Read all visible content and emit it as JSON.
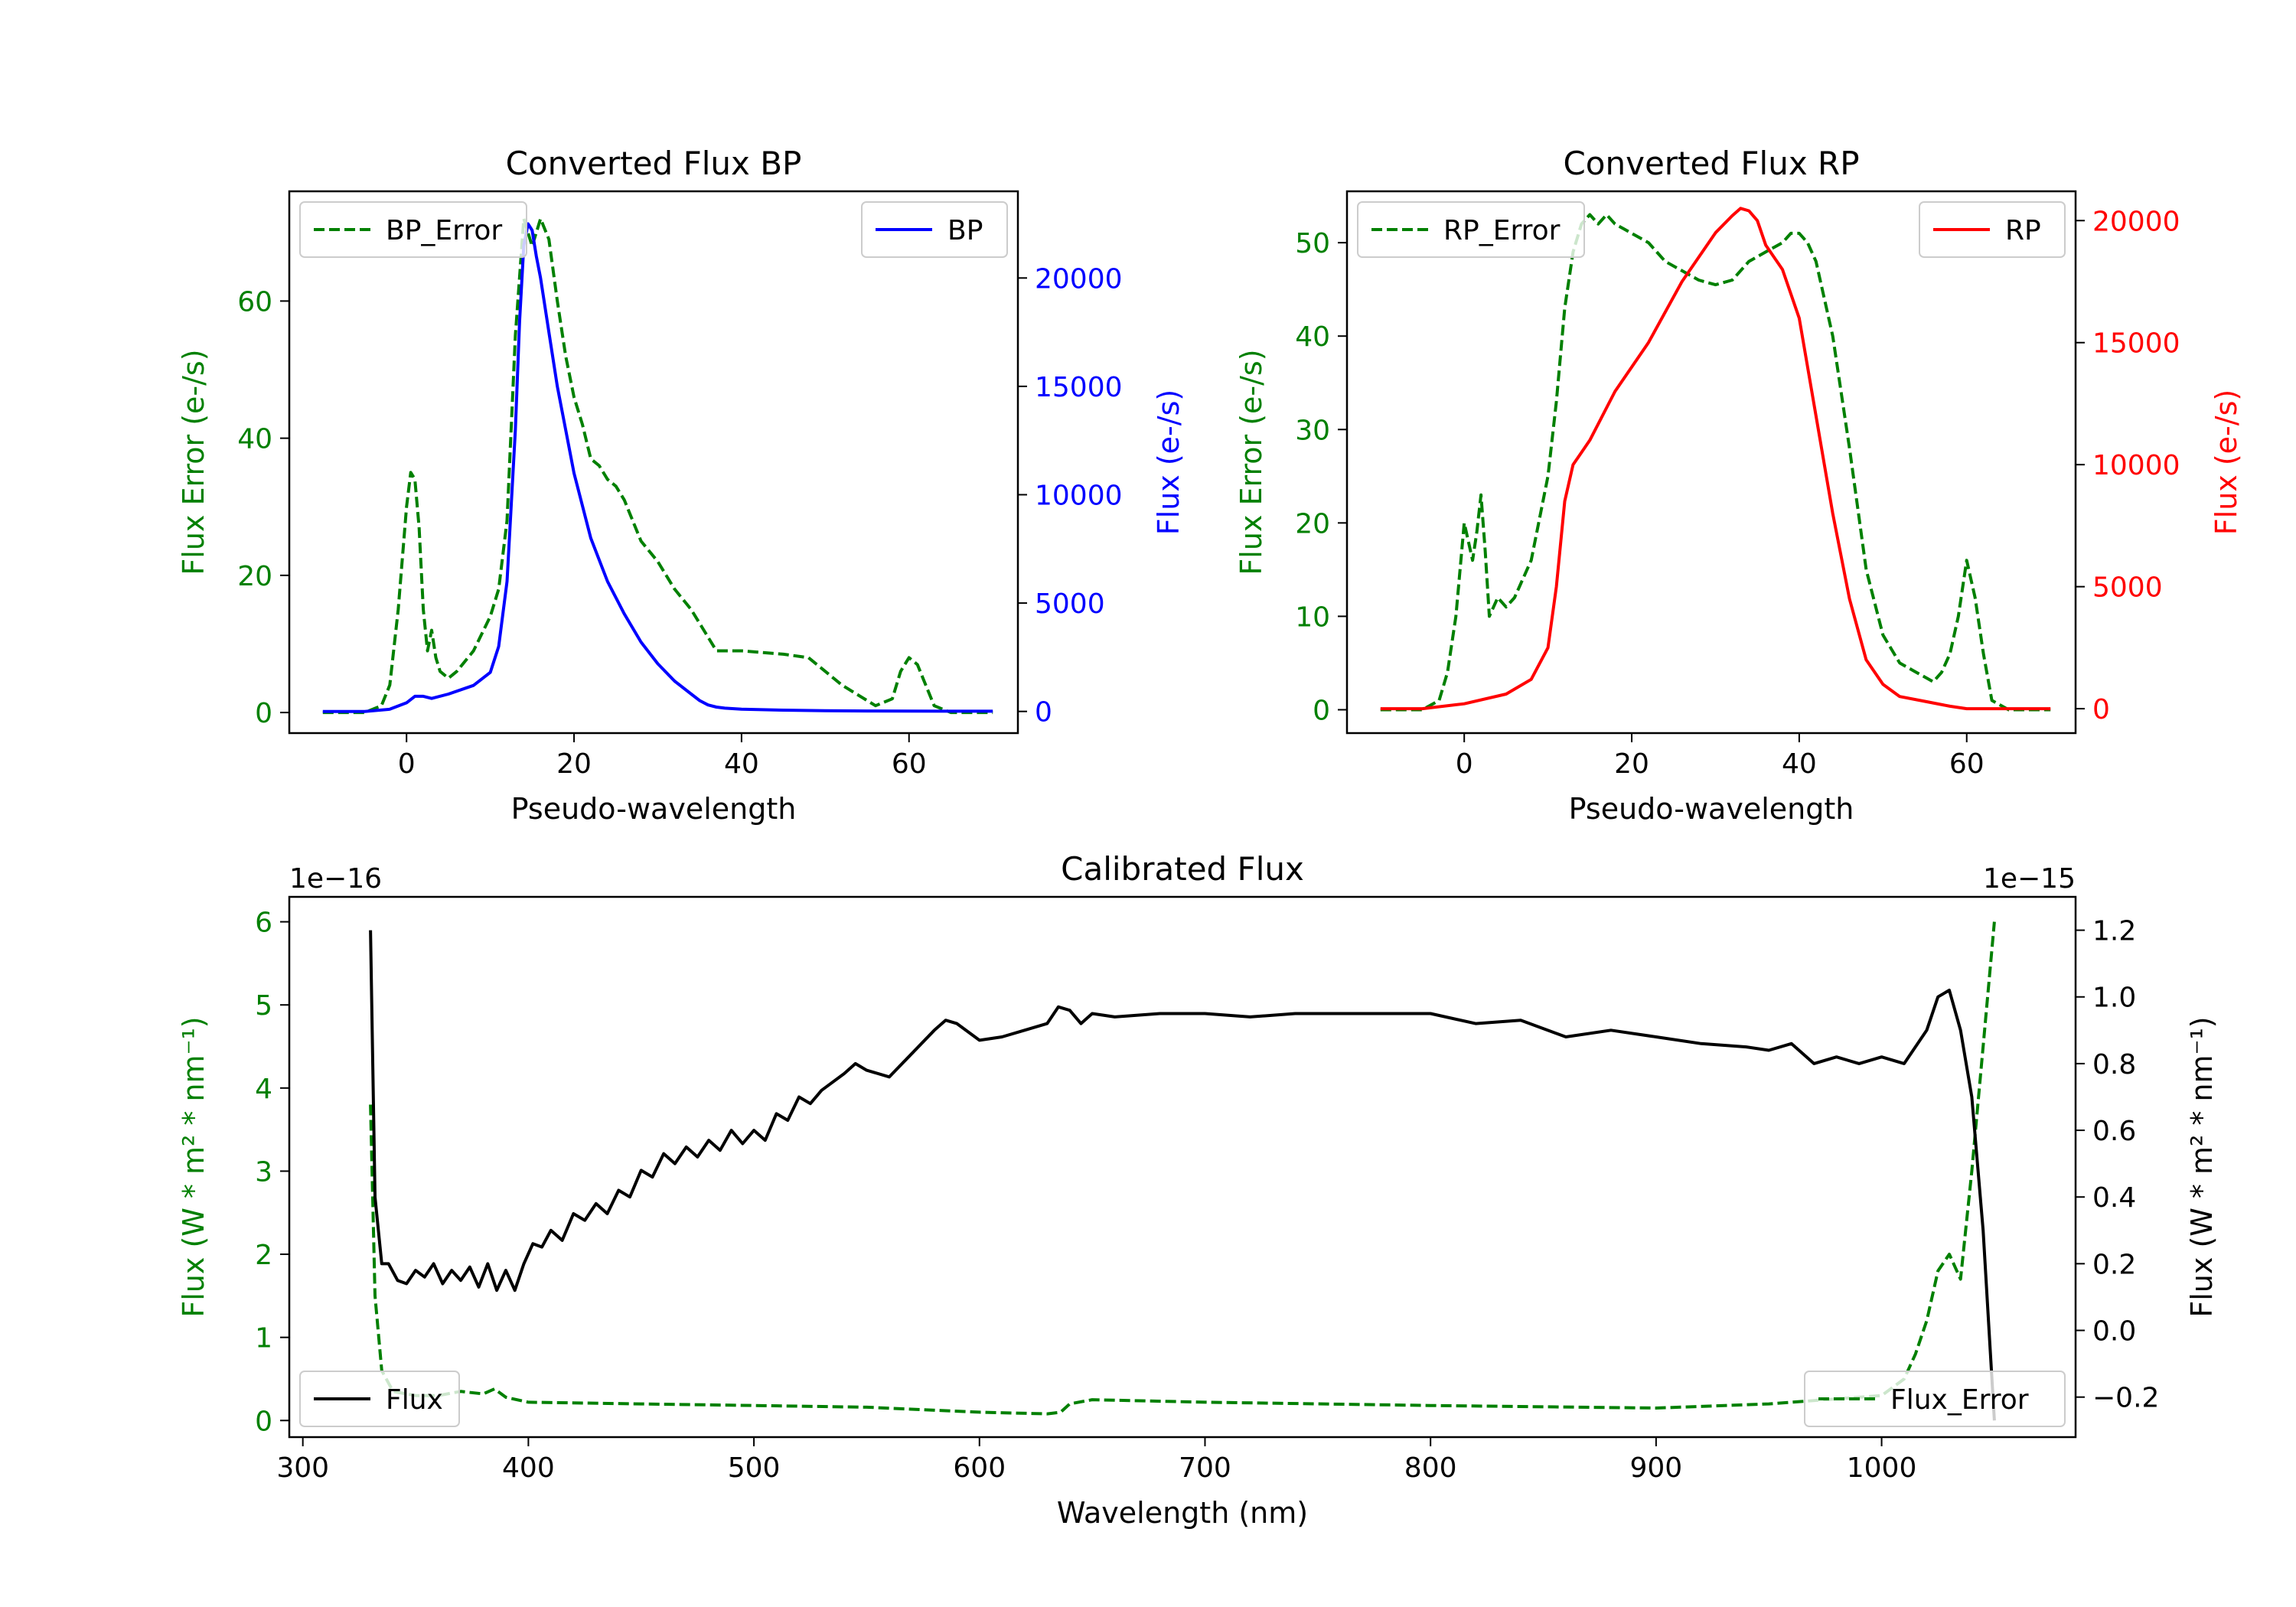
{
  "colors": {
    "green": "#008000",
    "blue": "#0000ff",
    "red": "#ff0000",
    "black": "#000000"
  },
  "chart_data": [
    {
      "id": "bp",
      "type": "line",
      "title": "Converted Flux BP",
      "xlabel": "Pseudo-wavelength",
      "ylabel_left": "Flux Error (e-/s)",
      "ylabel_right": "Flux (e-/s)",
      "xlim": [
        -14,
        73
      ],
      "ylim_left": [
        -3,
        76
      ],
      "ylim_right": [
        -1000,
        24000
      ],
      "xticks": [
        "0",
        "20",
        "40",
        "60"
      ],
      "xtick_values": [
        0,
        20,
        40,
        60
      ],
      "yticks_left": [
        "0",
        "20",
        "40",
        "60"
      ],
      "ytick_values_left": [
        0,
        20,
        40,
        60
      ],
      "yticks_right": [
        "0",
        "5000",
        "10000",
        "15000",
        "20000"
      ],
      "ytick_values_right": [
        0,
        5000,
        10000,
        15000,
        20000
      ],
      "legend_left": "BP_Error",
      "legend_right": "BP",
      "series": [
        {
          "name": "BP_Error",
          "axis": "left",
          "style": "dashed",
          "color": "#008000",
          "x": [
            -10,
            -5,
            -3,
            -2,
            -1,
            0,
            0.5,
            1,
            1.5,
            2,
            2.5,
            3,
            3.5,
            4,
            5,
            6,
            8,
            10,
            11,
            12,
            13,
            14,
            15,
            16,
            17,
            18,
            19,
            20,
            21,
            22,
            23,
            24,
            25,
            26,
            27,
            28,
            30,
            32,
            34,
            36,
            37,
            40,
            45,
            48,
            52,
            56,
            58,
            59,
            60,
            61,
            62,
            63,
            65,
            70
          ],
          "y": [
            0,
            0,
            1,
            4,
            15,
            30,
            35,
            34,
            27,
            15,
            9,
            12,
            8,
            6,
            5,
            6,
            9,
            14,
            18,
            28,
            55,
            72,
            68,
            72,
            69,
            60,
            52,
            46,
            42,
            37,
            36,
            34,
            33,
            31,
            28,
            25,
            22,
            18,
            15,
            11,
            9,
            9,
            8.5,
            8,
            4,
            1,
            2,
            6,
            8,
            7,
            4,
            1,
            0,
            0
          ]
        },
        {
          "name": "BP",
          "axis": "right",
          "style": "solid",
          "color": "#0000ff",
          "x": [
            -10,
            -5,
            -2,
            0,
            1,
            2,
            3,
            5,
            8,
            10,
            11,
            12,
            13,
            13.5,
            14,
            14.5,
            15,
            15.5,
            16,
            17,
            18,
            19,
            20,
            22,
            24,
            26,
            28,
            30,
            32,
            34,
            35,
            36,
            37,
            38,
            40,
            45,
            50,
            55,
            60,
            65,
            70
          ],
          "y": [
            0,
            0,
            100,
            400,
            700,
            700,
            600,
            800,
            1200,
            1800,
            3000,
            6000,
            13000,
            18000,
            21500,
            22500,
            22200,
            21000,
            20000,
            17500,
            15000,
            13000,
            11000,
            8000,
            6000,
            4500,
            3200,
            2200,
            1400,
            800,
            500,
            300,
            200,
            150,
            100,
            60,
            30,
            20,
            15,
            10,
            10
          ]
        }
      ]
    },
    {
      "id": "rp",
      "type": "line",
      "title": "Converted Flux RP",
      "xlabel": "Pseudo-wavelength",
      "ylabel_left": "Flux Error (e-/s)",
      "ylabel_right": "Flux (e-/s)",
      "xlim": [
        -14,
        73
      ],
      "ylim_left": [
        -2.5,
        55.5
      ],
      "ylim_right": [
        -1000,
        21200
      ],
      "xticks": [
        "0",
        "20",
        "40",
        "60"
      ],
      "xtick_values": [
        0,
        20,
        40,
        60
      ],
      "yticks_left": [
        "0",
        "10",
        "20",
        "30",
        "40",
        "50"
      ],
      "ytick_values_left": [
        0,
        10,
        20,
        30,
        40,
        50
      ],
      "yticks_right": [
        "0",
        "5000",
        "10000",
        "15000",
        "20000"
      ],
      "ytick_values_right": [
        0,
        5000,
        10000,
        15000,
        20000
      ],
      "legend_left": "RP_Error",
      "legend_right": "RP",
      "series": [
        {
          "name": "RP_Error",
          "axis": "left",
          "style": "dashed",
          "color": "#008000",
          "x": [
            -10,
            -5,
            -3,
            -2,
            -1,
            0,
            0.5,
            1,
            1.5,
            2,
            2.5,
            3,
            4,
            5,
            6,
            8,
            10,
            11,
            12,
            13,
            14,
            15,
            16,
            17,
            18,
            19,
            20,
            22,
            24,
            26,
            28,
            30,
            32,
            34,
            36,
            38,
            39,
            40,
            41,
            42,
            44,
            46,
            48,
            50,
            52,
            54,
            56,
            57,
            58,
            59,
            60,
            61,
            62,
            63,
            65,
            70
          ],
          "y": [
            0,
            0,
            1,
            4,
            10,
            20,
            18,
            16,
            19,
            23,
            17,
            10,
            12,
            11,
            12,
            16,
            25,
            33,
            43,
            49,
            52,
            53,
            52,
            53,
            52,
            51.5,
            51,
            50,
            48,
            47,
            46,
            45.5,
            46,
            48,
            49,
            50,
            51,
            51,
            50,
            48,
            40,
            28,
            15,
            8,
            5,
            4,
            3,
            4,
            6,
            10,
            16,
            12,
            6,
            1,
            0,
            0
          ]
        },
        {
          "name": "RP",
          "axis": "right",
          "style": "solid",
          "color": "#ff0000",
          "x": [
            -10,
            -5,
            0,
            5,
            8,
            10,
            11,
            12,
            13,
            14,
            15,
            18,
            22,
            26,
            30,
            32,
            33,
            34,
            35,
            36,
            38,
            40,
            42,
            44,
            46,
            48,
            50,
            52,
            55,
            58,
            60,
            65,
            70
          ],
          "y": [
            0,
            0,
            200,
            600,
            1200,
            2500,
            5000,
            8500,
            10000,
            10500,
            11000,
            13000,
            15000,
            17500,
            19500,
            20200,
            20500,
            20400,
            20000,
            19000,
            18000,
            16000,
            12000,
            8000,
            4500,
            2000,
            1000,
            500,
            300,
            100,
            0,
            0,
            0
          ]
        }
      ]
    },
    {
      "id": "calibrated",
      "type": "line",
      "title": "Calibrated Flux",
      "xlabel": "Wavelength (nm)",
      "ylabel_left": "Flux (W * m² * nm⁻¹)",
      "ylabel_right": "Flux (W * m² * nm⁻¹)",
      "offset_left": "1e−16",
      "offset_right": "1e−15",
      "xlim": [
        294,
        1086
      ],
      "ylim_left": [
        -0.2,
        6.3
      ],
      "ylim_right": [
        -0.32,
        1.3
      ],
      "xticks": [
        "300",
        "400",
        "500",
        "600",
        "700",
        "800",
        "900",
        "1000"
      ],
      "xtick_values": [
        300,
        400,
        500,
        600,
        700,
        800,
        900,
        1000
      ],
      "yticks_left": [
        "0",
        "1",
        "2",
        "3",
        "4",
        "5",
        "6"
      ],
      "ytick_values_left": [
        0,
        1,
        2,
        3,
        4,
        5,
        6
      ],
      "yticks_right": [
        "−0.2",
        "0.0",
        "0.2",
        "0.4",
        "0.6",
        "0.8",
        "1.0",
        "1.2"
      ],
      "ytick_values_right": [
        -0.2,
        0,
        0.2,
        0.4,
        0.6,
        0.8,
        1.0,
        1.2
      ],
      "legend_left": "Flux",
      "legend_right": "Flux_Error",
      "series": [
        {
          "name": "Flux_Error",
          "axis": "left",
          "style": "dashed",
          "color": "#008000",
          "x": [
            330,
            332,
            335,
            340,
            350,
            360,
            370,
            380,
            385,
            390,
            400,
            450,
            500,
            550,
            600,
            630,
            636,
            640,
            650,
            700,
            800,
            900,
            950,
            1000,
            1010,
            1015,
            1020,
            1025,
            1030,
            1035,
            1040,
            1045,
            1050
          ],
          "y": [
            3.8,
            1.5,
            0.6,
            0.35,
            0.3,
            0.3,
            0.35,
            0.32,
            0.38,
            0.28,
            0.22,
            0.2,
            0.18,
            0.16,
            0.1,
            0.08,
            0.1,
            0.2,
            0.25,
            0.22,
            0.18,
            0.15,
            0.2,
            0.3,
            0.5,
            0.8,
            1.2,
            1.8,
            2.0,
            1.7,
            3.0,
            4.5,
            6.0
          ]
        },
        {
          "name": "Flux",
          "axis": "right",
          "style": "solid",
          "color": "#000000",
          "x": [
            330,
            332,
            335,
            338,
            342,
            346,
            350,
            354,
            358,
            362,
            366,
            370,
            374,
            378,
            382,
            386,
            390,
            394,
            398,
            402,
            406,
            410,
            415,
            420,
            425,
            430,
            435,
            440,
            445,
            450,
            455,
            460,
            465,
            470,
            475,
            480,
            485,
            490,
            495,
            500,
            505,
            510,
            515,
            520,
            525,
            530,
            540,
            545,
            550,
            560,
            570,
            580,
            585,
            590,
            600,
            610,
            620,
            630,
            635,
            640,
            645,
            650,
            660,
            680,
            700,
            720,
            740,
            760,
            780,
            800,
            820,
            840,
            860,
            880,
            900,
            920,
            940,
            950,
            960,
            970,
            980,
            990,
            1000,
            1010,
            1020,
            1025,
            1030,
            1035,
            1040,
            1045,
            1050
          ],
          "y": [
            1.2,
            0.4,
            0.2,
            0.2,
            0.15,
            0.14,
            0.18,
            0.16,
            0.2,
            0.14,
            0.18,
            0.15,
            0.19,
            0.13,
            0.2,
            0.12,
            0.18,
            0.12,
            0.2,
            0.26,
            0.25,
            0.3,
            0.27,
            0.35,
            0.33,
            0.38,
            0.35,
            0.42,
            0.4,
            0.48,
            0.46,
            0.53,
            0.5,
            0.55,
            0.52,
            0.57,
            0.54,
            0.6,
            0.56,
            0.6,
            0.57,
            0.65,
            0.63,
            0.7,
            0.68,
            0.72,
            0.77,
            0.8,
            0.78,
            0.76,
            0.83,
            0.9,
            0.93,
            0.92,
            0.87,
            0.88,
            0.9,
            0.92,
            0.97,
            0.96,
            0.92,
            0.95,
            0.94,
            0.95,
            0.95,
            0.94,
            0.95,
            0.95,
            0.95,
            0.95,
            0.92,
            0.93,
            0.88,
            0.9,
            0.88,
            0.86,
            0.85,
            0.84,
            0.86,
            0.8,
            0.82,
            0.8,
            0.82,
            0.8,
            0.9,
            1.0,
            1.02,
            0.9,
            0.7,
            0.3,
            -0.27
          ]
        }
      ]
    }
  ]
}
